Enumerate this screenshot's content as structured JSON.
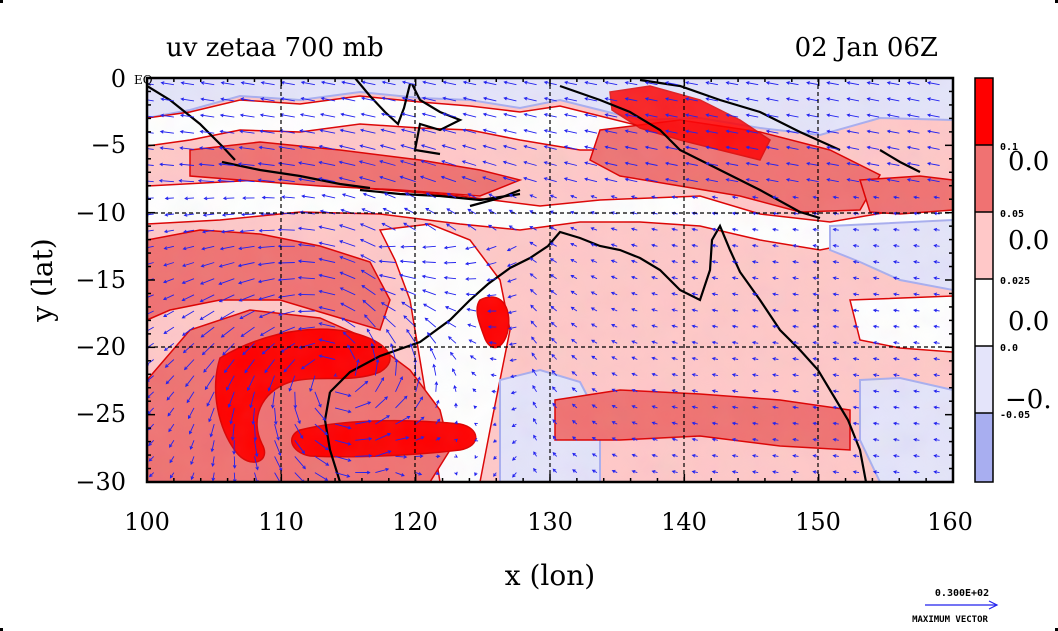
{
  "header": {
    "title": "uv zetaa 700 mb",
    "datetime": "02 Jan 06Z"
  },
  "chart_data": {
    "type": "heatmap",
    "xlabel": "x (lon)",
    "ylabel": "y (lat)",
    "xlim": [
      100,
      160
    ],
    "ylim": [
      -30,
      0
    ],
    "x_ticks": [
      "100",
      "110",
      "120",
      "130",
      "140",
      "150",
      "160"
    ],
    "y_ticks": [
      "0",
      "−5",
      "−10",
      "−15",
      "−20",
      "−25",
      "−30"
    ],
    "y_tick_suffix_top": "EQ",
    "grid": true,
    "colorbar": {
      "placement": "right",
      "level_labels": [
        "0.1",
        "0.05",
        "0.025",
        "0.0",
        "-0.05"
      ],
      "large_labels": [
        "0.0",
        "0.0",
        "0.0",
        "−0."
      ],
      "colors": [
        "#ff0000",
        "#f07272",
        "#ffc8c8",
        "#ffffff",
        "#e4e4fa",
        "#a8aef0"
      ]
    },
    "vector_legend": {
      "value": "0.300E+02",
      "label": "MAXIMUM VECTOR"
    },
    "vector_color": "#2222ee",
    "coast_color": "#000000",
    "contour_color": "#dd0000"
  }
}
